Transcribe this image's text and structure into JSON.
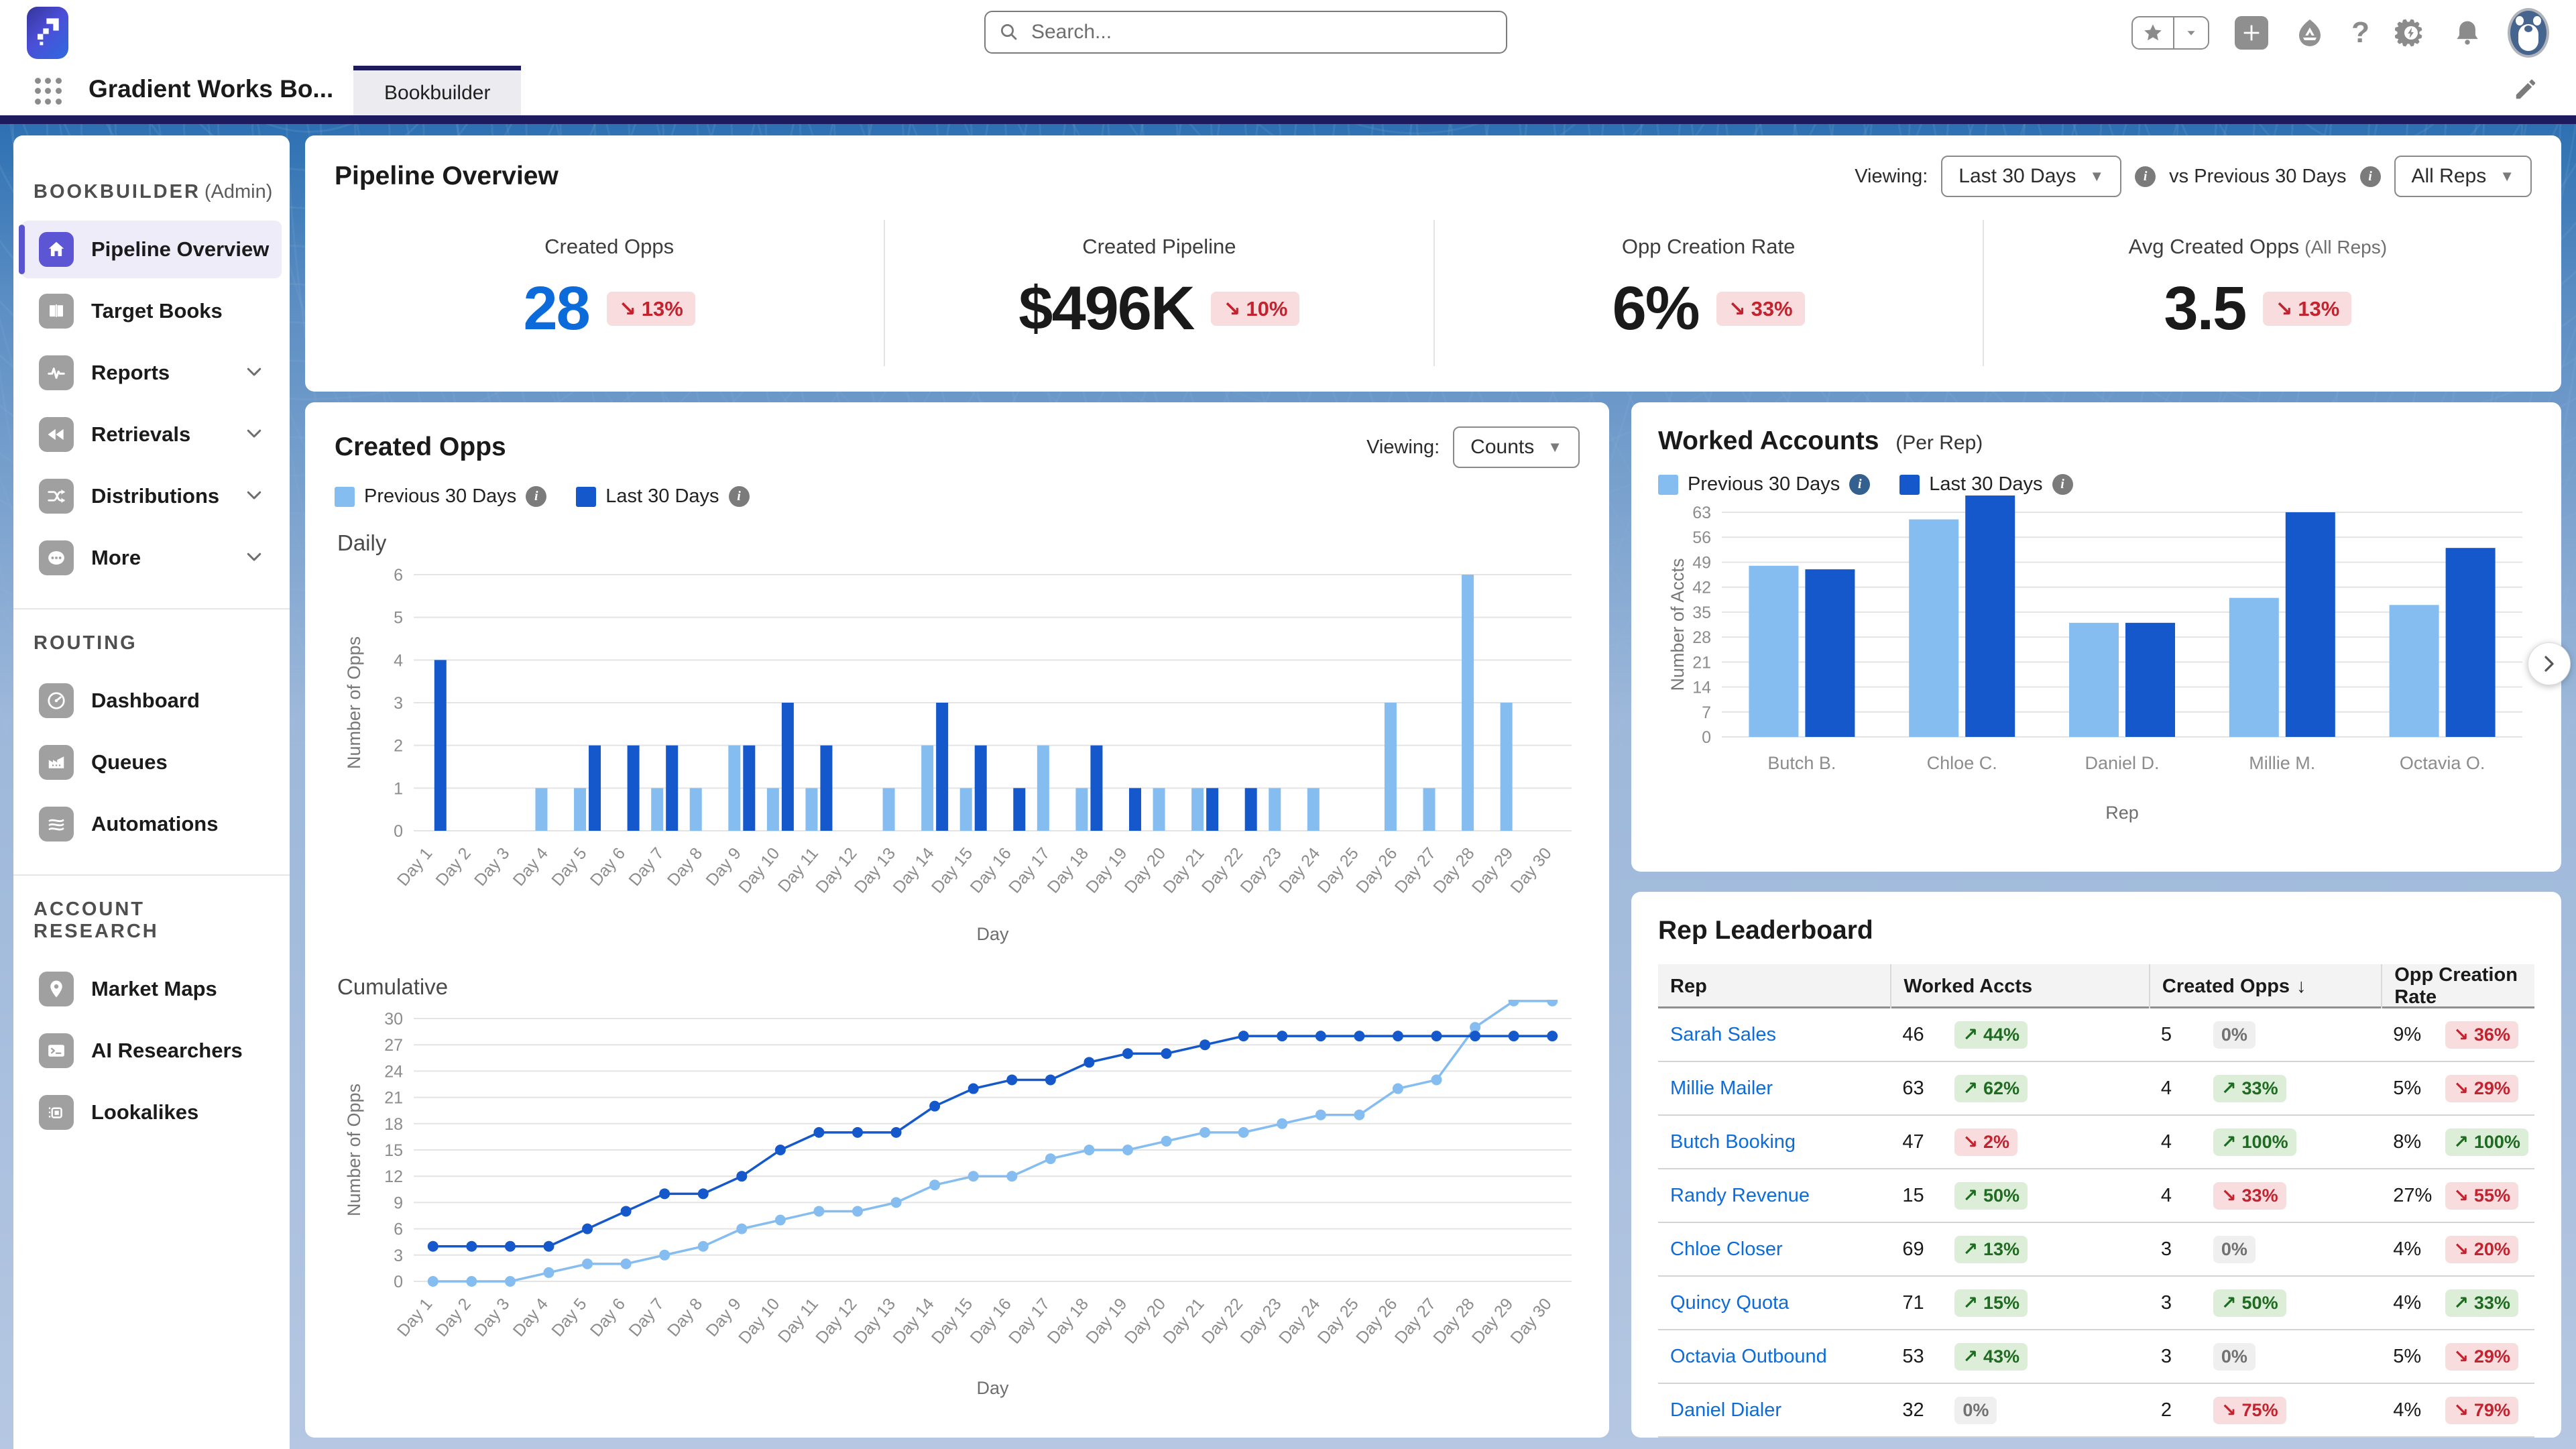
{
  "colors": {
    "navy": "#1d1b5e",
    "prev_blue": "#85BDF1",
    "last_blue": "#1458CC",
    "kpi_blue": "#0B6BDB",
    "link_blue": "#0d6cd9",
    "active_indigo": "#5c55d4"
  },
  "topbar": {
    "search_placeholder": "Search...",
    "icons": [
      "favorites-star",
      "favorites-dropdown",
      "add",
      "guidance-center",
      "help",
      "setup-gear",
      "notifications-bell",
      "avatar"
    ]
  },
  "appbar": {
    "app_name": "Gradient Works Bo...",
    "tab": "Bookbuilder",
    "edit_icon": "pencil-icon"
  },
  "sidebar": {
    "sections": [
      {
        "header": "BOOKBUILDER",
        "suffix": "(Admin)",
        "items": [
          {
            "label": "Pipeline Overview",
            "icon": "home-icon",
            "active": true,
            "expandable": false
          },
          {
            "label": "Target Books",
            "icon": "book-icon",
            "active": false,
            "expandable": false
          },
          {
            "label": "Reports",
            "icon": "pulse-icon",
            "active": false,
            "expandable": true
          },
          {
            "label": "Retrievals",
            "icon": "rewind-icon",
            "active": false,
            "expandable": true
          },
          {
            "label": "Distributions",
            "icon": "split-icon",
            "active": false,
            "expandable": true
          },
          {
            "label": "More",
            "icon": "more-icon",
            "active": false,
            "expandable": true
          }
        ]
      },
      {
        "header": "ROUTING",
        "suffix": "",
        "items": [
          {
            "label": "Dashboard",
            "icon": "gauge-icon",
            "active": false,
            "expandable": false
          },
          {
            "label": "Queues",
            "icon": "queue-icon",
            "active": false,
            "expandable": false
          },
          {
            "label": "Automations",
            "icon": "waves-icon",
            "active": false,
            "expandable": false
          }
        ]
      },
      {
        "header": "ACCOUNT RESEARCH",
        "suffix": "",
        "items": [
          {
            "label": "Market Maps",
            "icon": "map-pin-icon",
            "active": false,
            "expandable": false
          },
          {
            "label": "AI Researchers",
            "icon": "terminal-icon",
            "active": false,
            "expandable": false
          },
          {
            "label": "Lookalikes",
            "icon": "chip-icon",
            "active": false,
            "expandable": false
          }
        ]
      }
    ]
  },
  "header": {
    "title": "Pipeline Overview",
    "viewing_label": "Viewing:",
    "range_value": "Last 30 Days",
    "vs_label": "vs Previous 30 Days",
    "reps_value": "All Reps"
  },
  "kpis": [
    {
      "label": "Created Opps",
      "suffix": "",
      "value": "28",
      "value_color": "#0B6BDB",
      "delta": {
        "dir": "down",
        "text": "13%"
      }
    },
    {
      "label": "Created Pipeline",
      "suffix": "",
      "value": "$496K",
      "value_color": "#1a1a1a",
      "delta": {
        "dir": "down",
        "text": "10%"
      }
    },
    {
      "label": "Opp Creation Rate",
      "suffix": "",
      "value": "6%",
      "value_color": "#1a1a1a",
      "delta": {
        "dir": "down",
        "text": "33%"
      }
    },
    {
      "label": "Avg Created Opps",
      "suffix": "(All Reps)",
      "value": "3.5",
      "value_color": "#1a1a1a",
      "delta": {
        "dir": "down",
        "text": "13%"
      }
    }
  ],
  "legend": [
    {
      "label": "Previous 30 Days",
      "color": "#85BDF1",
      "info_color": "#7b7b7b"
    },
    {
      "label": "Last 30 Days",
      "color": "#1458CC",
      "info_color": "#7b7b7b"
    }
  ],
  "worked_legend": [
    {
      "label": "Previous 30 Days",
      "color": "#85BDF1",
      "info_color": "#33608f"
    },
    {
      "label": "Last 30 Days",
      "color": "#1458CC",
      "info_color": "#7b7b7b"
    }
  ],
  "created_opps": {
    "title": "Created Opps",
    "viewing_label": "Viewing:",
    "viewing_value": "Counts",
    "daily_title": "Daily",
    "cumulative_title": "Cumulative"
  },
  "worked_accounts": {
    "title": "Worked Accounts",
    "suffix": "(Per Rep)"
  },
  "chart_data": [
    {
      "id": "daily",
      "type": "bar",
      "title": "Daily",
      "xlabel": "Day",
      "ylabel": "Number of Opps",
      "ylim": [
        0,
        6
      ],
      "y_ticks": [
        0,
        1,
        2,
        3,
        4,
        5,
        6
      ],
      "grid": true,
      "legend_position": "top",
      "categories": [
        "Day 1",
        "Day 2",
        "Day 3",
        "Day 4",
        "Day 5",
        "Day 6",
        "Day 7",
        "Day 8",
        "Day 9",
        "Day 10",
        "Day 11",
        "Day 12",
        "Day 13",
        "Day 14",
        "Day 15",
        "Day 16",
        "Day 17",
        "Day 18",
        "Day 19",
        "Day 20",
        "Day 21",
        "Day 22",
        "Day 23",
        "Day 24",
        "Day 25",
        "Day 26",
        "Day 27",
        "Day 28",
        "Day 29",
        "Day 30"
      ],
      "series": [
        {
          "name": "Previous 30 Days",
          "color": "#85BDF1",
          "values": [
            0,
            0,
            0,
            1,
            1,
            0,
            1,
            1,
            2,
            1,
            1,
            0,
            1,
            2,
            1,
            0,
            2,
            1,
            0,
            1,
            1,
            0,
            1,
            1,
            0,
            3,
            1,
            6,
            3,
            0
          ]
        },
        {
          "name": "Last 30 Days",
          "color": "#1458CC",
          "values": [
            4,
            0,
            0,
            0,
            2,
            2,
            2,
            0,
            2,
            3,
            2,
            0,
            0,
            3,
            2,
            1,
            0,
            2,
            1,
            0,
            1,
            1,
            0,
            0,
            0,
            0,
            0,
            0,
            0,
            0
          ]
        }
      ]
    },
    {
      "id": "cumulative",
      "type": "line",
      "title": "Cumulative",
      "xlabel": "Day",
      "ylabel": "Number of Opps",
      "ylim": [
        0,
        30
      ],
      "y_ticks": [
        0,
        3,
        6,
        9,
        12,
        15,
        18,
        21,
        24,
        27,
        30
      ],
      "grid": true,
      "categories": [
        "Day 1",
        "Day 2",
        "Day 3",
        "Day 4",
        "Day 5",
        "Day 6",
        "Day 7",
        "Day 8",
        "Day 9",
        "Day 10",
        "Day 11",
        "Day 12",
        "Day 13",
        "Day 14",
        "Day 15",
        "Day 16",
        "Day 17",
        "Day 18",
        "Day 19",
        "Day 20",
        "Day 21",
        "Day 22",
        "Day 23",
        "Day 24",
        "Day 25",
        "Day 26",
        "Day 27",
        "Day 28",
        "Day 29",
        "Day 30"
      ],
      "series": [
        {
          "name": "Previous 30 Days",
          "color": "#85BDF1",
          "values": [
            0,
            0,
            0,
            1,
            2,
            2,
            3,
            4,
            6,
            7,
            8,
            8,
            9,
            11,
            12,
            12,
            14,
            15,
            15,
            16,
            17,
            17,
            18,
            19,
            19,
            22,
            23,
            29,
            32,
            32
          ]
        },
        {
          "name": "Last 30 Days",
          "color": "#1458CC",
          "values": [
            4,
            4,
            4,
            4,
            6,
            8,
            10,
            10,
            12,
            15,
            17,
            17,
            17,
            20,
            22,
            23,
            23,
            25,
            26,
            26,
            27,
            28,
            28,
            28,
            28,
            28,
            28,
            28,
            28,
            28
          ]
        }
      ]
    },
    {
      "id": "worked",
      "type": "bar",
      "title": "Worked Accounts (Per Rep)",
      "xlabel": "Rep",
      "ylabel": "Number of Accts",
      "ylim": [
        0,
        63
      ],
      "y_ticks": [
        0,
        7,
        14,
        21,
        28,
        35,
        42,
        49,
        56,
        63
      ],
      "grid": true,
      "categories": [
        "Butch B.",
        "Chloe C.",
        "Daniel D.",
        "Millie M.",
        "Octavia O."
      ],
      "series": [
        {
          "name": "Previous 30 Days",
          "color": "#85BDF1",
          "values": [
            48,
            61,
            32,
            39,
            37
          ]
        },
        {
          "name": "Last 30 Days",
          "color": "#1458CC",
          "values": [
            47,
            69,
            32,
            63,
            53
          ]
        }
      ]
    }
  ],
  "leaderboard": {
    "title": "Rep Leaderboard",
    "columns": [
      {
        "label": "Rep",
        "sort": ""
      },
      {
        "label": "Worked Accts",
        "sort": ""
      },
      {
        "label": "Created Opps",
        "sort": "↓"
      },
      {
        "label": "Opp Creation Rate",
        "sort": ""
      }
    ],
    "rows": [
      {
        "rep": "Sarah Sales",
        "worked": {
          "v": "46",
          "delta": {
            "dir": "up",
            "text": "44%"
          }
        },
        "opps": {
          "v": "5",
          "delta": {
            "dir": "flat",
            "text": "0%"
          }
        },
        "rate": {
          "v": "9%",
          "delta": {
            "dir": "down",
            "text": "36%"
          }
        }
      },
      {
        "rep": "Millie Mailer",
        "worked": {
          "v": "63",
          "delta": {
            "dir": "up",
            "text": "62%"
          }
        },
        "opps": {
          "v": "4",
          "delta": {
            "dir": "up",
            "text": "33%"
          }
        },
        "rate": {
          "v": "5%",
          "delta": {
            "dir": "down",
            "text": "29%"
          }
        }
      },
      {
        "rep": "Butch Booking",
        "worked": {
          "v": "47",
          "delta": {
            "dir": "down",
            "text": "2%"
          }
        },
        "opps": {
          "v": "4",
          "delta": {
            "dir": "up",
            "text": "100%"
          }
        },
        "rate": {
          "v": "8%",
          "delta": {
            "dir": "up",
            "text": "100%"
          }
        }
      },
      {
        "rep": "Randy Revenue",
        "worked": {
          "v": "15",
          "delta": {
            "dir": "up",
            "text": "50%"
          }
        },
        "opps": {
          "v": "4",
          "delta": {
            "dir": "down",
            "text": "33%"
          }
        },
        "rate": {
          "v": "27%",
          "delta": {
            "dir": "down",
            "text": "55%"
          }
        }
      },
      {
        "rep": "Chloe Closer",
        "worked": {
          "v": "69",
          "delta": {
            "dir": "up",
            "text": "13%"
          }
        },
        "opps": {
          "v": "3",
          "delta": {
            "dir": "flat",
            "text": "0%"
          }
        },
        "rate": {
          "v": "4%",
          "delta": {
            "dir": "down",
            "text": "20%"
          }
        }
      },
      {
        "rep": "Quincy Quota",
        "worked": {
          "v": "71",
          "delta": {
            "dir": "up",
            "text": "15%"
          }
        },
        "opps": {
          "v": "3",
          "delta": {
            "dir": "up",
            "text": "50%"
          }
        },
        "rate": {
          "v": "4%",
          "delta": {
            "dir": "up",
            "text": "33%"
          }
        }
      },
      {
        "rep": "Octavia Outbound",
        "worked": {
          "v": "53",
          "delta": {
            "dir": "up",
            "text": "43%"
          }
        },
        "opps": {
          "v": "3",
          "delta": {
            "dir": "flat",
            "text": "0%"
          }
        },
        "rate": {
          "v": "5%",
          "delta": {
            "dir": "down",
            "text": "29%"
          }
        }
      },
      {
        "rep": "Daniel Dialer",
        "worked": {
          "v": "32",
          "delta": {
            "dir": "flat",
            "text": "0%"
          }
        },
        "opps": {
          "v": "2",
          "delta": {
            "dir": "down",
            "text": "75%"
          }
        },
        "rate": {
          "v": "4%",
          "delta": {
            "dir": "down",
            "text": "79%"
          }
        }
      }
    ]
  }
}
